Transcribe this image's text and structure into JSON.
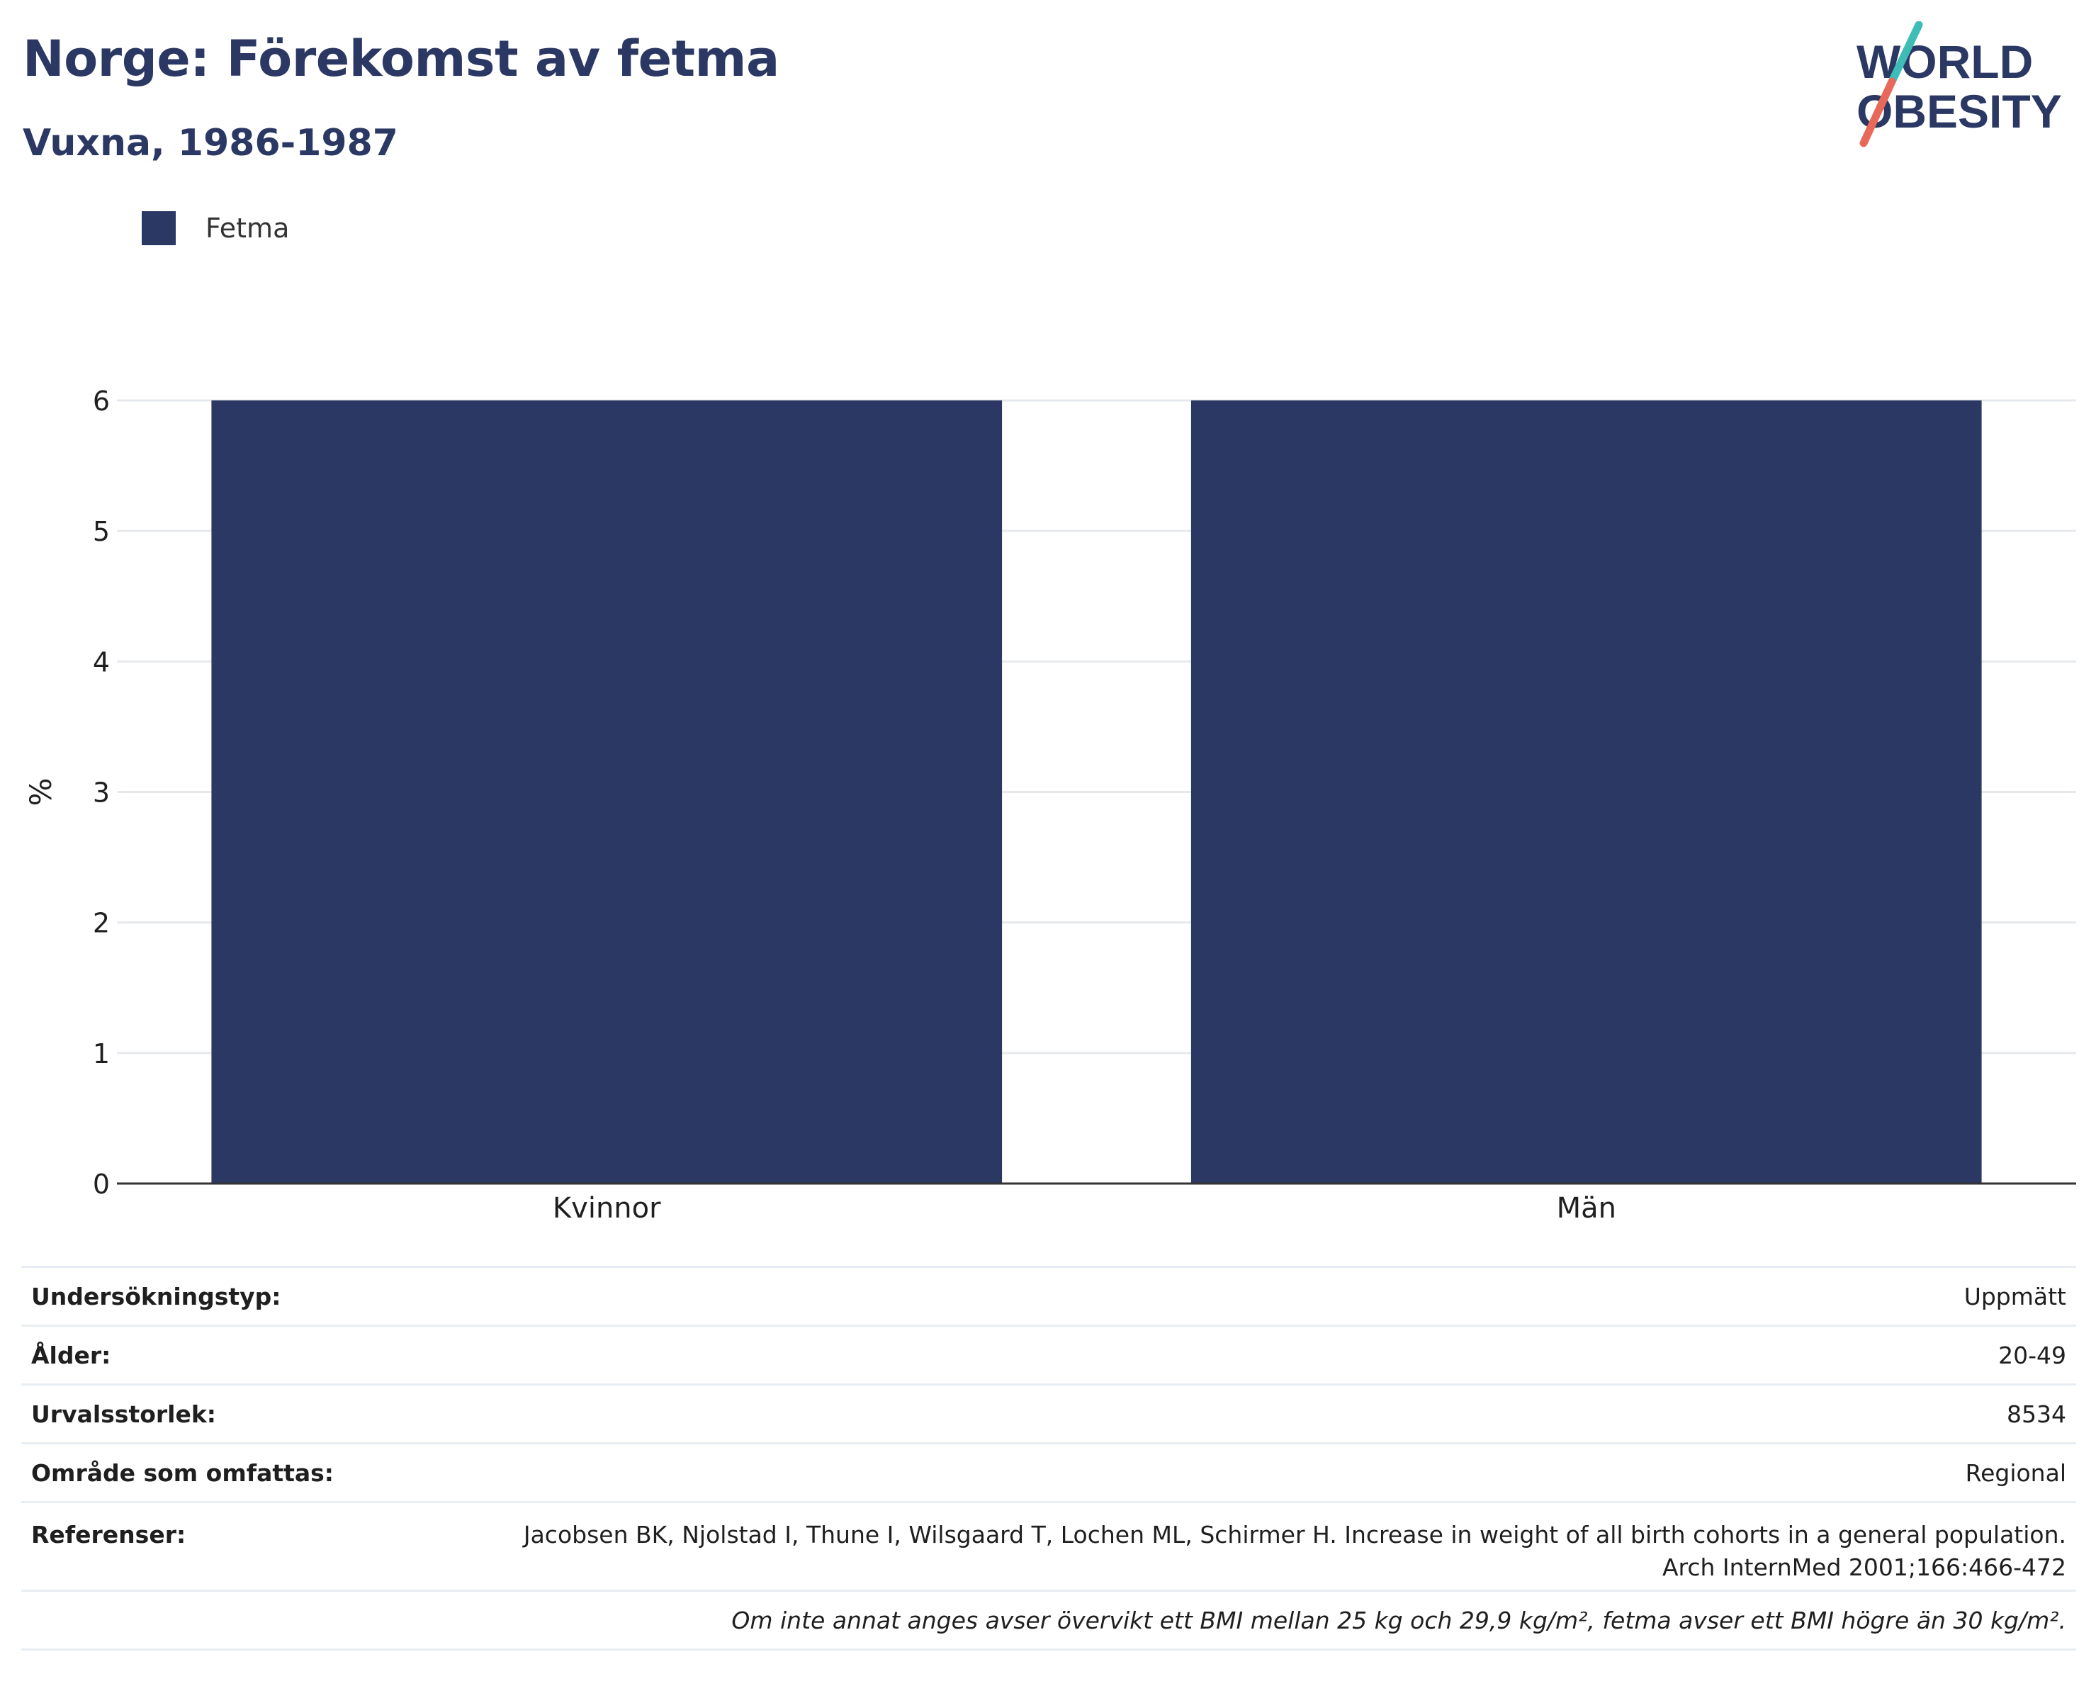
{
  "header": {
    "title": "Norge: Förekomst av fetma",
    "subtitle": "Vuxna, 1986-1987"
  },
  "logo": {
    "line1": "WORLD",
    "line2": "OBESITY"
  },
  "legend": {
    "label": "Fetma"
  },
  "colors": {
    "bar": "#2b3864",
    "brand_teal": "#3ebcb6",
    "brand_coral": "#e8685a",
    "grid": "#e6e9ee",
    "axis": "#333333"
  },
  "chart_data": {
    "type": "bar",
    "categories": [
      "Kvinnor",
      "Män"
    ],
    "series": [
      {
        "name": "Fetma",
        "values": [
          6,
          6
        ]
      }
    ],
    "title": "Norge: Förekomst av fetma",
    "subtitle": "Vuxna, 1986-1987",
    "xlabel": "",
    "ylabel": "%",
    "ylim": [
      0,
      6
    ],
    "yticks": [
      0,
      1,
      2,
      3,
      4,
      5,
      6
    ],
    "grid": true,
    "legend_position": "top-left"
  },
  "info": {
    "rows": [
      {
        "key": "Undersökningstyp:",
        "value": "Uppmätt"
      },
      {
        "key": "Ålder:",
        "value": "20-49"
      },
      {
        "key": "Urvalsstorlek:",
        "value": "8534"
      },
      {
        "key": "Område som omfattas:",
        "value": "Regional"
      }
    ],
    "references": {
      "key": "Referenser:",
      "line1": "Jacobsen BK, Njolstad I, Thune I, Wilsgaard T, Lochen ML, Schirmer H. Increase in weight of all birth cohorts in a general population.",
      "line2": "Arch InternMed 2001;166:466-472"
    },
    "note": "Om inte annat anges avser övervikt ett BMI mellan 25 kg och 29,9 kg/m², fetma avser ett BMI högre än 30 kg/m²."
  }
}
